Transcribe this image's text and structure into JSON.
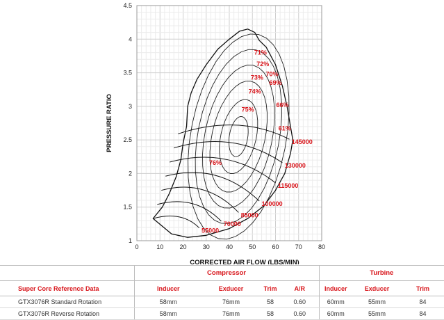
{
  "chart_data": {
    "type": "scatter",
    "xlabel": "CORRECTED AIR FLOW (LBS/MIN)",
    "ylabel": "PRESSURE RATIO",
    "xlim": [
      0,
      80
    ],
    "ylim": [
      1,
      4.5
    ],
    "x_ticks": [
      "0",
      "10",
      "20",
      "30",
      "40",
      "50",
      "60",
      "70",
      "80"
    ],
    "y_ticks": [
      "1",
      "1.5",
      "2",
      "2.5",
      "3",
      "3.5",
      "4",
      "4.5"
    ],
    "grid": true,
    "surge_line": [
      [
        7,
        1.33
      ],
      [
        11,
        1.5
      ],
      [
        14,
        1.7
      ],
      [
        17,
        1.95
      ],
      [
        19,
        2.2
      ],
      [
        20,
        2.45
      ],
      [
        21.5,
        2.7
      ],
      [
        22,
        3.0
      ],
      [
        23.5,
        3.2
      ],
      [
        26,
        3.4
      ],
      [
        30,
        3.62
      ],
      [
        35,
        3.85
      ],
      [
        40,
        4.0
      ],
      [
        44.5,
        4.12
      ],
      [
        48,
        4.15
      ],
      [
        51,
        4.1
      ]
    ],
    "choke_line": [
      [
        51,
        4.1
      ],
      [
        53,
        3.98
      ],
      [
        56,
        3.88
      ],
      [
        60,
        3.62
      ],
      [
        63,
        3.3
      ],
      [
        65,
        3.0
      ],
      [
        66.5,
        2.7
      ],
      [
        67.5,
        2.5
      ],
      [
        66.5,
        2.3
      ],
      [
        64,
        2.0
      ],
      [
        60,
        1.75
      ],
      [
        55,
        1.52
      ],
      [
        48,
        1.33
      ],
      [
        40,
        1.18
      ],
      [
        30,
        1.08
      ],
      [
        22,
        1.05
      ],
      [
        15,
        1.1
      ],
      [
        7,
        1.33
      ]
    ],
    "efficiency_labels": [
      {
        "label": "71%",
        "x": 53.5,
        "y": 3.8
      },
      {
        "label": "72%",
        "x": 54.5,
        "y": 3.63
      },
      {
        "label": "70%",
        "x": 58.5,
        "y": 3.48
      },
      {
        "label": "73%",
        "x": 52,
        "y": 3.43
      },
      {
        "label": "69%",
        "x": 60,
        "y": 3.35
      },
      {
        "label": "74%",
        "x": 51,
        "y": 3.22
      },
      {
        "label": "66%",
        "x": 63,
        "y": 3.02
      },
      {
        "label": "75%",
        "x": 48,
        "y": 2.95
      },
      {
        "label": "61%",
        "x": 64,
        "y": 2.67
      },
      {
        "label": "76%",
        "x": 34,
        "y": 2.16
      }
    ],
    "speed_lines": [
      {
        "label": "55000",
        "x": 28,
        "y": 1.15
      },
      {
        "label": "70000",
        "x": 37.5,
        "y": 1.25
      },
      {
        "label": "85000",
        "x": 45,
        "y": 1.38
      },
      {
        "label": "100000",
        "x": 54,
        "y": 1.55
      },
      {
        "label": "115000",
        "x": 61,
        "y": 1.82
      },
      {
        "label": "130000",
        "x": 64,
        "y": 2.12
      },
      {
        "label": "145000",
        "x": 67,
        "y": 2.47
      }
    ]
  },
  "table": {
    "group_headers": {
      "compressor": "Compressor",
      "turbine": "Turbine"
    },
    "headers": [
      "Super Core Reference Data",
      "Inducer",
      "Exducer",
      "Trim",
      "A/R",
      "Inducer",
      "Exducer",
      "Trim"
    ],
    "rows": [
      [
        "GTX3076R  Standard Rotation",
        "58mm",
        "76mm",
        "58",
        "0.60",
        "60mm",
        "55mm",
        "84"
      ],
      [
        "GTX3076R  Reverse Rotation",
        "58mm",
        "76mm",
        "58",
        "0.60",
        "60mm",
        "55mm",
        "84"
      ]
    ]
  },
  "colors": {
    "accent": "#d8141a",
    "lines": "#111111",
    "grid": "#d6d6d6"
  }
}
